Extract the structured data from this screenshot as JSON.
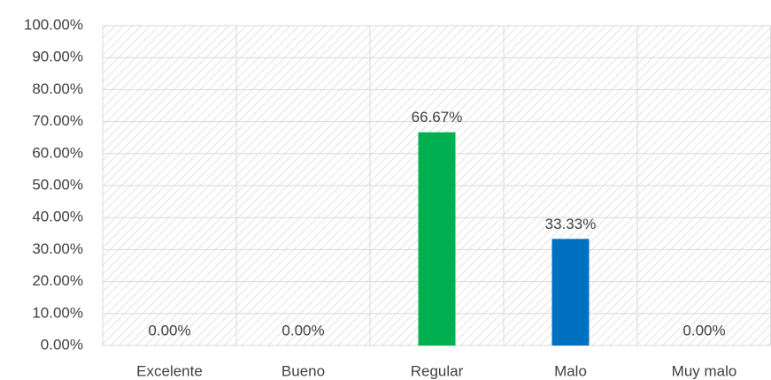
{
  "chart_data": {
    "type": "bar",
    "categories": [
      "Excelente",
      "Bueno",
      "Regular",
      "Malo",
      "Muy malo"
    ],
    "values": [
      0,
      0,
      66.67,
      33.33,
      0
    ],
    "value_labels": [
      "0.00%",
      "0.00%",
      "66.67%",
      "33.33%",
      "0.00%"
    ],
    "colors": [
      null,
      null,
      "#00b050",
      "#0070c0",
      null
    ],
    "ylim": [
      0,
      100
    ],
    "yticks": [
      {
        "value": 0,
        "label": "0.00%"
      },
      {
        "value": 10,
        "label": "10.00%"
      },
      {
        "value": 20,
        "label": "20.00%"
      },
      {
        "value": 30,
        "label": "30.00%"
      },
      {
        "value": 40,
        "label": "40.00%"
      },
      {
        "value": 50,
        "label": "50.00%"
      },
      {
        "value": 60,
        "label": "60.00%"
      },
      {
        "value": 70,
        "label": "70.00%"
      },
      {
        "value": 80,
        "label": "80.00%"
      },
      {
        "value": 90,
        "label": "90.00%"
      },
      {
        "value": 100,
        "label": "100.00%"
      }
    ],
    "grid": true
  }
}
